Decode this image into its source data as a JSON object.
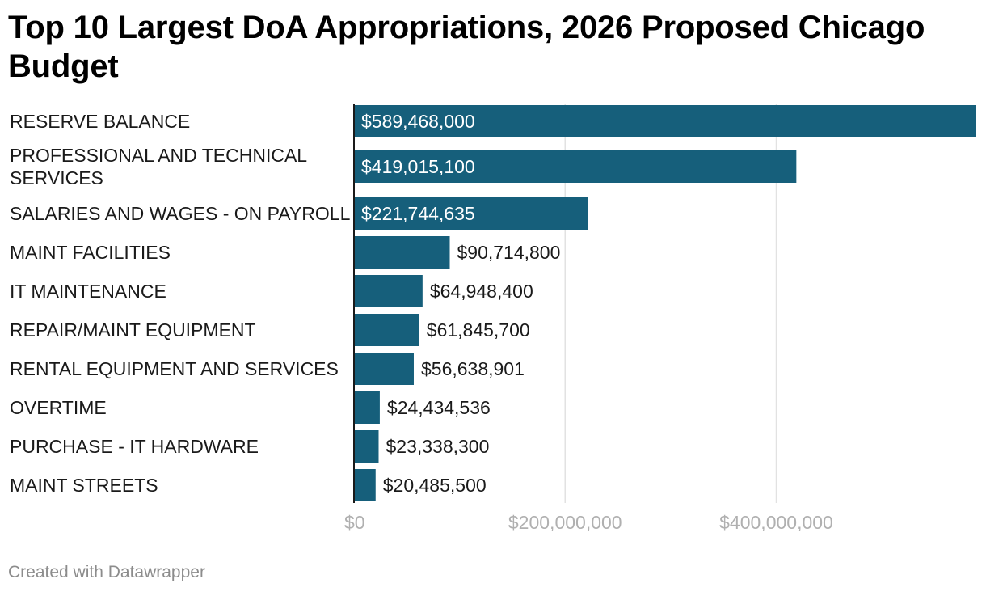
{
  "footer": "Created with Datawrapper",
  "colors": {
    "bar": "#165f7b",
    "grid": "#e2e2e2",
    "axis": "#1a1a1a",
    "inside_label": "#ffffff",
    "outside_label": "#1a1a1a",
    "tick": "#b0b0b0"
  },
  "chart_data": {
    "type": "bar",
    "orientation": "horizontal",
    "title": "Top 10 Largest DoA Appropriations, 2026 Proposed Chicago Budget",
    "categories": [
      "RESERVE BALANCE",
      "PROFESSIONAL AND TECHNICAL SERVICES",
      "SALARIES AND WAGES - ON PAYROLL",
      "MAINT FACILITIES",
      "IT MAINTENANCE",
      "REPAIR/MAINT EQUIPMENT",
      "RENTAL EQUIPMENT AND SERVICES",
      "OVERTIME",
      "PURCHASE - IT HARDWARE",
      "MAINT STREETS"
    ],
    "category_lines": [
      [
        "RESERVE BALANCE"
      ],
      [
        "PROFESSIONAL AND TECHNICAL",
        "SERVICES"
      ],
      [
        "SALARIES AND WAGES - ON PAYROLL"
      ],
      [
        "MAINT FACILITIES"
      ],
      [
        "IT MAINTENANCE"
      ],
      [
        "REPAIR/MAINT EQUIPMENT"
      ],
      [
        "RENTAL EQUIPMENT AND SERVICES"
      ],
      [
        "OVERTIME"
      ],
      [
        "PURCHASE - IT HARDWARE"
      ],
      [
        "MAINT STREETS"
      ]
    ],
    "values": [
      589468000,
      419015100,
      221744635,
      90714800,
      64948400,
      61845700,
      56638901,
      24434536,
      23338300,
      20485500
    ],
    "value_labels": [
      "$589,468,000",
      "$419,015,100",
      "$221,744,635",
      "$90,714,800",
      "$64,948,400",
      "$61,845,700",
      "$56,638,901",
      "$24,434,536",
      "$23,338,300",
      "$20,485,500"
    ],
    "label_inside": [
      true,
      true,
      true,
      false,
      false,
      false,
      false,
      false,
      false,
      false
    ],
    "xlim": [
      0,
      589468000
    ],
    "x_ticks": [
      0,
      200000000,
      400000000
    ],
    "x_tick_labels": [
      "$0",
      "$200,000,000",
      "$400,000,000"
    ],
    "grid": true,
    "xlabel": "",
    "ylabel": ""
  }
}
